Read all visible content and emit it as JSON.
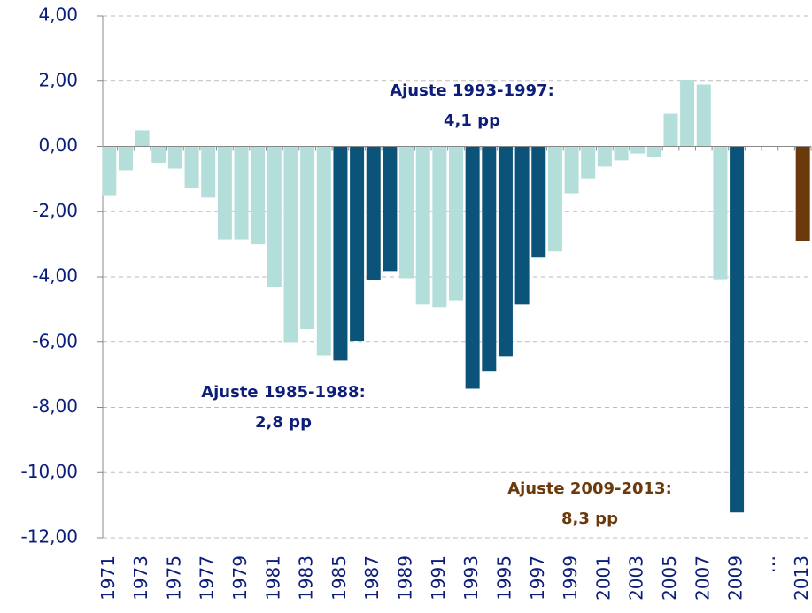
{
  "chart_data": {
    "type": "bar",
    "categories": [
      "1971",
      null,
      "1973",
      null,
      "1975",
      null,
      "1977",
      null,
      "1979",
      null,
      "1981",
      null,
      "1983",
      null,
      "1985",
      null,
      "1987",
      null,
      "1989",
      null,
      "1991",
      null,
      "1993",
      null,
      "1995",
      null,
      "1997",
      null,
      "1999",
      null,
      "2001",
      null,
      "2003",
      null,
      "2005",
      null,
      "2007",
      null,
      "2009",
      null,
      "…",
      null,
      "2013"
    ],
    "values": [
      -1.52,
      -0.73,
      0.49,
      -0.5,
      -0.68,
      -1.28,
      -1.57,
      -2.85,
      -2.85,
      -3.0,
      -4.3,
      -6.02,
      -5.6,
      -6.4,
      -6.56,
      -5.96,
      -4.1,
      -3.82,
      -4.04,
      -4.85,
      -4.93,
      -4.72,
      -7.43,
      -6.88,
      -6.45,
      -4.85,
      -3.41,
      -3.22,
      -1.44,
      -0.98,
      -0.62,
      -0.43,
      -0.22,
      -0.33,
      1.0,
      2.03,
      1.9,
      -4.07,
      -11.22,
      null,
      null,
      null,
      -2.9
    ],
    "colors": [
      "#b3ded9",
      "#b3ded9",
      "#b3ded9",
      "#b3ded9",
      "#b3ded9",
      "#b3ded9",
      "#b3ded9",
      "#b3ded9",
      "#b3ded9",
      "#b3ded9",
      "#b3ded9",
      "#b3ded9",
      "#b3ded9",
      "#b3ded9",
      "#0b5379",
      "#0b5379",
      "#0b5379",
      "#0b5379",
      "#b3ded9",
      "#b3ded9",
      "#b3ded9",
      "#b3ded9",
      "#0b5379",
      "#0b5379",
      "#0b5379",
      "#0b5379",
      "#0b5379",
      "#b3ded9",
      "#b3ded9",
      "#b3ded9",
      "#b3ded9",
      "#b3ded9",
      "#b3ded9",
      "#b3ded9",
      "#b3ded9",
      "#b3ded9",
      "#b3ded9",
      "#b3ded9",
      "#0b5379",
      null,
      null,
      null,
      "#6b3a0c"
    ],
    "ylim": [
      -12,
      4
    ],
    "yticks": [
      {
        "value": -12,
        "label": "-12,00"
      },
      {
        "value": -10,
        "label": "-10,00"
      },
      {
        "value": -8,
        "label": "-8,00"
      },
      {
        "value": -6,
        "label": "-6,00"
      },
      {
        "value": -4,
        "label": "-4,00"
      },
      {
        "value": -2,
        "label": "-2,00"
      },
      {
        "value": 0,
        "label": "0,00"
      },
      {
        "value": 2,
        "label": "2,00"
      },
      {
        "value": 4,
        "label": "4,00"
      }
    ],
    "grid": true,
    "annotations": [
      {
        "lines": [
          "Ajuste 1993-1997:",
          "4,1 pp"
        ],
        "color": "#0d1e7a"
      },
      {
        "lines": [
          "Ajuste 1985-1988:",
          "2,8 pp"
        ],
        "color": "#0d1e7a"
      },
      {
        "lines": [
          "Ajuste 2009-2013:",
          "8,3 pp"
        ],
        "color": "#6b3a0c"
      }
    ]
  }
}
